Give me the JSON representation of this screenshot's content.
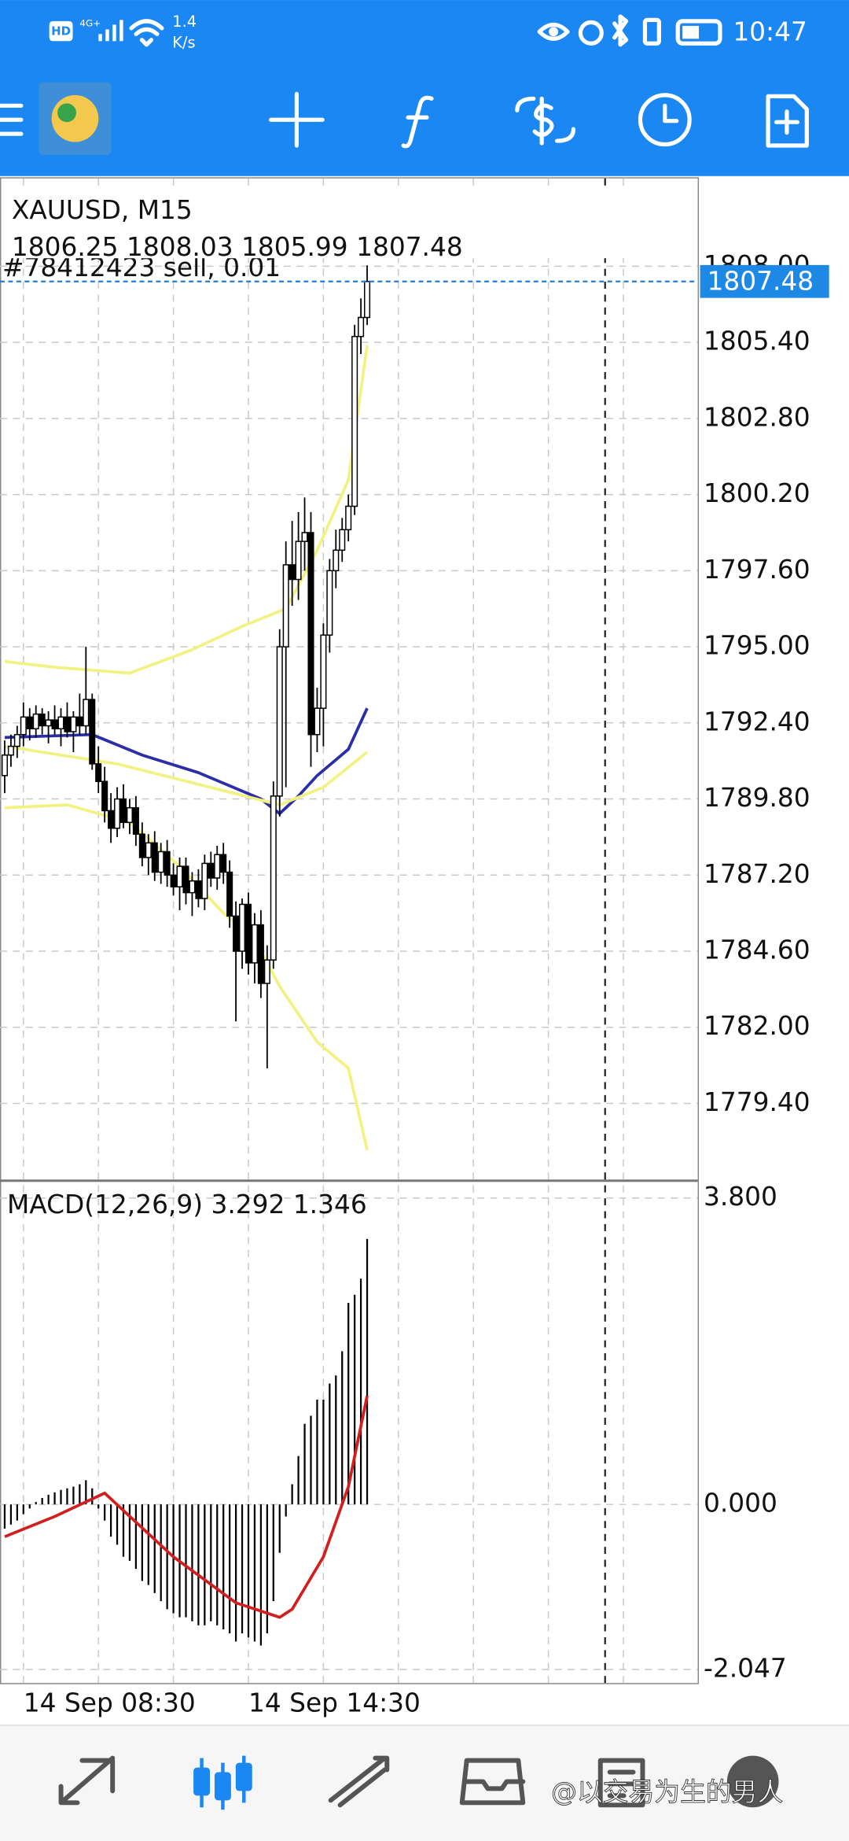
{
  "status_bar": {
    "hd": "HD",
    "network": "4G+",
    "speed": "1.4",
    "speed_unit": "K/s",
    "time": "10:47"
  },
  "chart_data": [
    {
      "type": "candlestick",
      "title": "XAUUSD, M15",
      "categories": [
        null,
        null,
        null,
        "14 Sep 08:30",
        null,
        null,
        null,
        null,
        null,
        null,
        null,
        null,
        null,
        null,
        null,
        null,
        null,
        null,
        null,
        null,
        null,
        null,
        null,
        null,
        null,
        null,
        null,
        null,
        null,
        null,
        null,
        null,
        null,
        null,
        null,
        null,
        null,
        null,
        null,
        "14 Sep 14:30",
        null,
        null,
        null,
        null,
        null,
        null,
        null,
        null,
        null,
        null,
        null,
        null,
        null,
        null,
        null,
        null,
        null,
        null,
        null
      ],
      "open": [
        1790.6,
        1791.3,
        1791.6,
        1792.0,
        1792.6,
        1792.2,
        1792.7,
        1792.3,
        1792.5,
        1792.2,
        1792.6,
        1792.1,
        1792.6,
        1792.3,
        1793.2,
        1791.0,
        1790.4,
        1789.4,
        1788.8,
        1789.8,
        1789.0,
        1789.5,
        1788.6,
        1787.8,
        1788.3,
        1787.3,
        1788.0,
        1787.2,
        1786.8,
        1787.5,
        1786.6,
        1787.0,
        1786.4,
        1787.6,
        1787.1,
        1787.9,
        1787.3,
        1785.8,
        1784.6,
        1786.2,
        1784.2,
        1785.5,
        1783.5,
        1784.3,
        1789.9,
        1795.0,
        1797.8,
        1797.3,
        1798.6,
        1798.9,
        1792.0,
        1792.9,
        1795.4,
        1797.6,
        1798.3,
        1799.0,
        1799.8,
        1805.6,
        1806.25
      ],
      "high": [
        1791.8,
        1792.0,
        1792.3,
        1793.1,
        1792.9,
        1793.0,
        1792.9,
        1792.8,
        1793.0,
        1792.9,
        1793.1,
        1792.8,
        1793.4,
        1795.0,
        1793.4,
        1791.6,
        1790.9,
        1790.0,
        1790.2,
        1790.3,
        1789.8,
        1789.9,
        1789.0,
        1788.6,
        1788.7,
        1788.3,
        1788.4,
        1787.6,
        1787.8,
        1787.8,
        1787.3,
        1787.4,
        1787.9,
        1788.0,
        1788.2,
        1788.3,
        1787.7,
        1786.3,
        1786.4,
        1786.6,
        1785.9,
        1786.0,
        1784.8,
        1790.4,
        1795.6,
        1798.6,
        1799.3,
        1799.6,
        1800.1,
        1799.6,
        1793.6,
        1795.8,
        1798.0,
        1799.0,
        1799.4,
        1800.2,
        1806.0,
        1806.9,
        1808.03
      ],
      "low": [
        1790.0,
        1790.9,
        1791.2,
        1791.6,
        1791.8,
        1791.9,
        1792.0,
        1791.7,
        1792.0,
        1791.6,
        1791.9,
        1791.4,
        1792.0,
        1792.0,
        1790.8,
        1790.0,
        1789.0,
        1788.3,
        1788.5,
        1788.8,
        1788.6,
        1788.2,
        1787.5,
        1787.2,
        1787.0,
        1786.9,
        1786.8,
        1786.5,
        1786.0,
        1786.2,
        1785.8,
        1786.1,
        1786.0,
        1786.8,
        1786.7,
        1786.9,
        1785.4,
        1782.2,
        1784.0,
        1783.8,
        1783.5,
        1783.0,
        1780.6,
        1784.0,
        1789.2,
        1790.2,
        1796.4,
        1796.6,
        1797.6,
        1790.9,
        1791.4,
        1791.6,
        1794.8,
        1797.0,
        1797.9,
        1798.6,
        1799.5,
        1805.0,
        1805.99
      ],
      "close": [
        1791.3,
        1791.6,
        1792.0,
        1792.6,
        1792.2,
        1792.7,
        1792.3,
        1792.5,
        1792.2,
        1792.6,
        1792.1,
        1792.6,
        1792.3,
        1793.2,
        1791.0,
        1790.4,
        1789.4,
        1788.8,
        1789.8,
        1789.0,
        1789.5,
        1788.6,
        1787.8,
        1788.3,
        1787.3,
        1788.0,
        1787.2,
        1786.8,
        1787.5,
        1786.6,
        1787.0,
        1786.4,
        1787.6,
        1787.1,
        1787.9,
        1787.3,
        1785.8,
        1784.6,
        1786.2,
        1784.2,
        1785.5,
        1783.5,
        1784.3,
        1789.9,
        1795.0,
        1797.8,
        1797.3,
        1798.6,
        1798.9,
        1792.0,
        1792.9,
        1795.4,
        1797.6,
        1798.3,
        1799.0,
        1799.8,
        1805.6,
        1806.25,
        1807.48
      ],
      "up_color": "#ffffff",
      "down_color": "#000000",
      "overlays": [
        {
          "color": "#f2f283",
          "x": [
            0,
            8,
            20,
            30,
            38,
            45,
            50,
            55,
            58
          ],
          "values": [
            1794.5,
            1794.3,
            1794.1,
            1794.9,
            1795.7,
            1796.3,
            1798.3,
            1800.7,
            1805.3
          ]
        },
        {
          "color": "#2a2fa8",
          "x": [
            0,
            14,
            22,
            31,
            41,
            44,
            47,
            50,
            55,
            58
          ],
          "values": [
            1791.9,
            1792.0,
            1791.3,
            1790.7,
            1789.8,
            1789.3,
            1789.9,
            1790.6,
            1791.5,
            1792.9
          ]
        },
        {
          "color": "#f2f283",
          "x": [
            0,
            18,
            44,
            51,
            58
          ],
          "values": [
            1791.6,
            1791.0,
            1789.6,
            1790.2,
            1791.4
          ]
        },
        {
          "color": "#f2f283",
          "x": [
            0,
            10,
            20,
            28,
            35,
            40,
            44,
            50,
            55,
            58
          ],
          "values": [
            1789.5,
            1789.6,
            1789.0,
            1787.5,
            1785.9,
            1785.0,
            1783.4,
            1781.5,
            1780.6,
            1777.8
          ]
        }
      ],
      "order": {
        "label": "#78412423 sell, 0.01",
        "price": 1807.48,
        "color": "#1e7fd8"
      },
      "xlim": [
        -0.75,
        110.9
      ],
      "ylim": [
        1776.8,
        1811.0
      ],
      "yticks": [
        {
          "value": 1808,
          "label": "1808.00"
        },
        {
          "value": 1805.4,
          "label": "1805.40"
        },
        {
          "value": 1802.8,
          "label": "1802.80"
        },
        {
          "value": 1800.2,
          "label": "1800.20"
        },
        {
          "value": 1797.6,
          "label": "1797.60"
        },
        {
          "value": 1795,
          "label": "1795.00"
        },
        {
          "value": 1792.4,
          "label": "1792.40"
        },
        {
          "value": 1789.8,
          "label": "1789.80"
        },
        {
          "value": 1787.2,
          "label": "1787.20"
        },
        {
          "value": 1784.6,
          "label": "1784.60"
        },
        {
          "value": 1782,
          "label": "1782.00"
        },
        {
          "value": 1779.4,
          "label": "1779.40"
        }
      ],
      "grid": true
    },
    {
      "type": "macd",
      "title": "MACD(12,26,9)",
      "series": [
        {
          "type": "bar",
          "color": "#000000",
          "values": [
            -0.3,
            -0.25,
            -0.2,
            -0.12,
            -0.05,
            0.03,
            0.08,
            0.12,
            0.15,
            0.18,
            0.2,
            0.22,
            0.25,
            0.3,
            0.2,
            -0.05,
            -0.2,
            -0.4,
            -0.5,
            -0.65,
            -0.7,
            -0.8,
            -0.95,
            -1.0,
            -1.1,
            -1.2,
            -1.3,
            -1.35,
            -1.4,
            -1.4,
            -1.45,
            -1.5,
            -1.5,
            -1.45,
            -1.5,
            -1.55,
            -1.6,
            -1.7,
            -1.6,
            -1.65,
            -1.7,
            -1.75,
            -1.6,
            -1.2,
            -0.6,
            -0.15,
            0.25,
            0.6,
            1.0,
            1.1,
            1.3,
            1.3,
            1.5,
            1.6,
            1.9,
            2.5,
            2.6,
            2.8,
            3.292
          ]
        },
        {
          "type": "line",
          "color": "#d11f1f",
          "x": [
            0,
            8,
            16,
            27,
            37,
            44,
            46,
            51,
            55,
            58
          ],
          "values": [
            -0.4,
            -0.15,
            0.14,
            -0.65,
            -1.22,
            -1.4,
            -1.3,
            -0.65,
            0.22,
            1.346
          ]
        }
      ],
      "xlim": [
        -0.75,
        110.9
      ],
      "ylim": [
        -2.2,
        4.0
      ],
      "yticks": [
        {
          "value": 3.8,
          "label": "3.800"
        },
        {
          "value": 0,
          "label": "0.000"
        },
        {
          "value": -2.047,
          "label": "-2.047"
        }
      ],
      "grid": true
    }
  ],
  "watermark": "@以交易为生的男人"
}
